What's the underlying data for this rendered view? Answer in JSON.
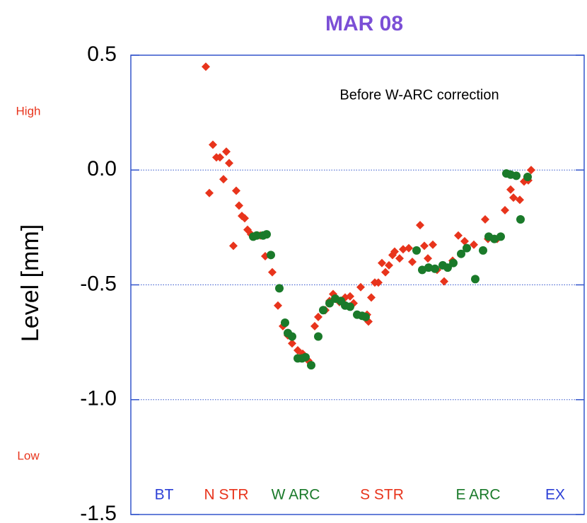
{
  "chart_data": {
    "type": "scatter",
    "title": "MAR 08",
    "ylabel": "Level [mm]",
    "annotation": "Before W-ARC correction",
    "high_label": "High",
    "low_label": "Low",
    "regions": [
      {
        "label": "BT",
        "color": "#2b3fd6"
      },
      {
        "label": "N STR",
        "color": "#e8341c"
      },
      {
        "label": "W ARC",
        "color": "#1a7a2a"
      },
      {
        "label": "S STR",
        "color": "#e8341c"
      },
      {
        "label": "E ARC",
        "color": "#1a7a2a"
      },
      {
        "label": "EX",
        "color": "#2b3fd6"
      }
    ],
    "xlim": [
      0,
      645
    ],
    "ylim": [
      -1.5,
      0.5
    ],
    "yticks": [
      {
        "value": -1.5,
        "label": "-1.5"
      },
      {
        "value": -1,
        "label": "-1.0"
      },
      -0.5,
      {
        "value": 0,
        "label": "0.0"
      },
      0.5
    ],
    "grid": true,
    "series": [
      {
        "marker": "diamond",
        "color": "#e8341c",
        "x": [
          106,
          111,
          116,
          121,
          126,
          131,
          135,
          139,
          145,
          149,
          153,
          157,
          161,
          165,
          170,
          175,
          183,
          190,
          200,
          208,
          215,
          222,
          228,
          236,
          243,
          251,
          260,
          265,
          275,
          281,
          286,
          295,
          303,
          310,
          315,
          325,
          334,
          336,
          340,
          345,
          350,
          355,
          360,
          365,
          370,
          373,
          380,
          385,
          393,
          398,
          409,
          415,
          420,
          427,
          433,
          443,
          455,
          463,
          472,
          485,
          501,
          505,
          518,
          529,
          537,
          541,
          550,
          556,
          562,
          566
        ],
        "values": [
          0.45,
          -0.1,
          0.11,
          0.055,
          0.055,
          -0.04,
          0.08,
          0.03,
          -0.33,
          -0.09,
          -0.155,
          -0.2,
          -0.21,
          -0.26,
          -0.28,
          -0.29,
          -0.285,
          -0.375,
          -0.445,
          -0.59,
          -0.68,
          -0.72,
          -0.755,
          -0.785,
          -0.8,
          -0.83,
          -0.68,
          -0.64,
          -0.61,
          -0.57,
          -0.54,
          -0.575,
          -0.555,
          -0.55,
          -0.58,
          -0.51,
          -0.63,
          -0.66,
          -0.555,
          -0.49,
          -0.49,
          -0.405,
          -0.445,
          -0.415,
          -0.37,
          -0.355,
          -0.385,
          -0.345,
          -0.34,
          -0.4,
          -0.24,
          -0.33,
          -0.385,
          -0.325,
          -0.435,
          -0.485,
          -0.395,
          -0.285,
          -0.31,
          -0.325,
          -0.215,
          -0.3,
          -0.3,
          -0.175,
          -0.085,
          -0.12,
          -0.13,
          -0.05,
          -0.045,
          0
        ]
      },
      {
        "marker": "circle",
        "color": "#1a7a2a",
        "x": [
          173,
          178,
          187,
          192,
          198,
          210,
          218,
          222,
          228,
          236,
          242,
          247,
          255,
          265,
          272,
          281,
          289,
          297,
          303,
          310,
          320,
          327,
          332,
          404,
          412,
          421,
          430,
          441,
          448,
          456,
          467,
          475,
          487,
          498,
          506,
          514,
          523,
          531,
          537,
          545,
          551,
          561
        ],
        "values": [
          -0.29,
          -0.285,
          -0.285,
          -0.28,
          -0.37,
          -0.515,
          -0.665,
          -0.71,
          -0.725,
          -0.82,
          -0.82,
          -0.815,
          -0.85,
          -0.725,
          -0.61,
          -0.58,
          -0.56,
          -0.57,
          -0.59,
          -0.595,
          -0.63,
          -0.635,
          -0.64,
          -0.35,
          -0.435,
          -0.425,
          -0.43,
          -0.415,
          -0.425,
          -0.405,
          -0.365,
          -0.34,
          -0.475,
          -0.35,
          -0.29,
          -0.3,
          -0.29,
          -0.015,
          -0.02,
          -0.025,
          -0.215,
          -0.03
        ]
      }
    ]
  }
}
